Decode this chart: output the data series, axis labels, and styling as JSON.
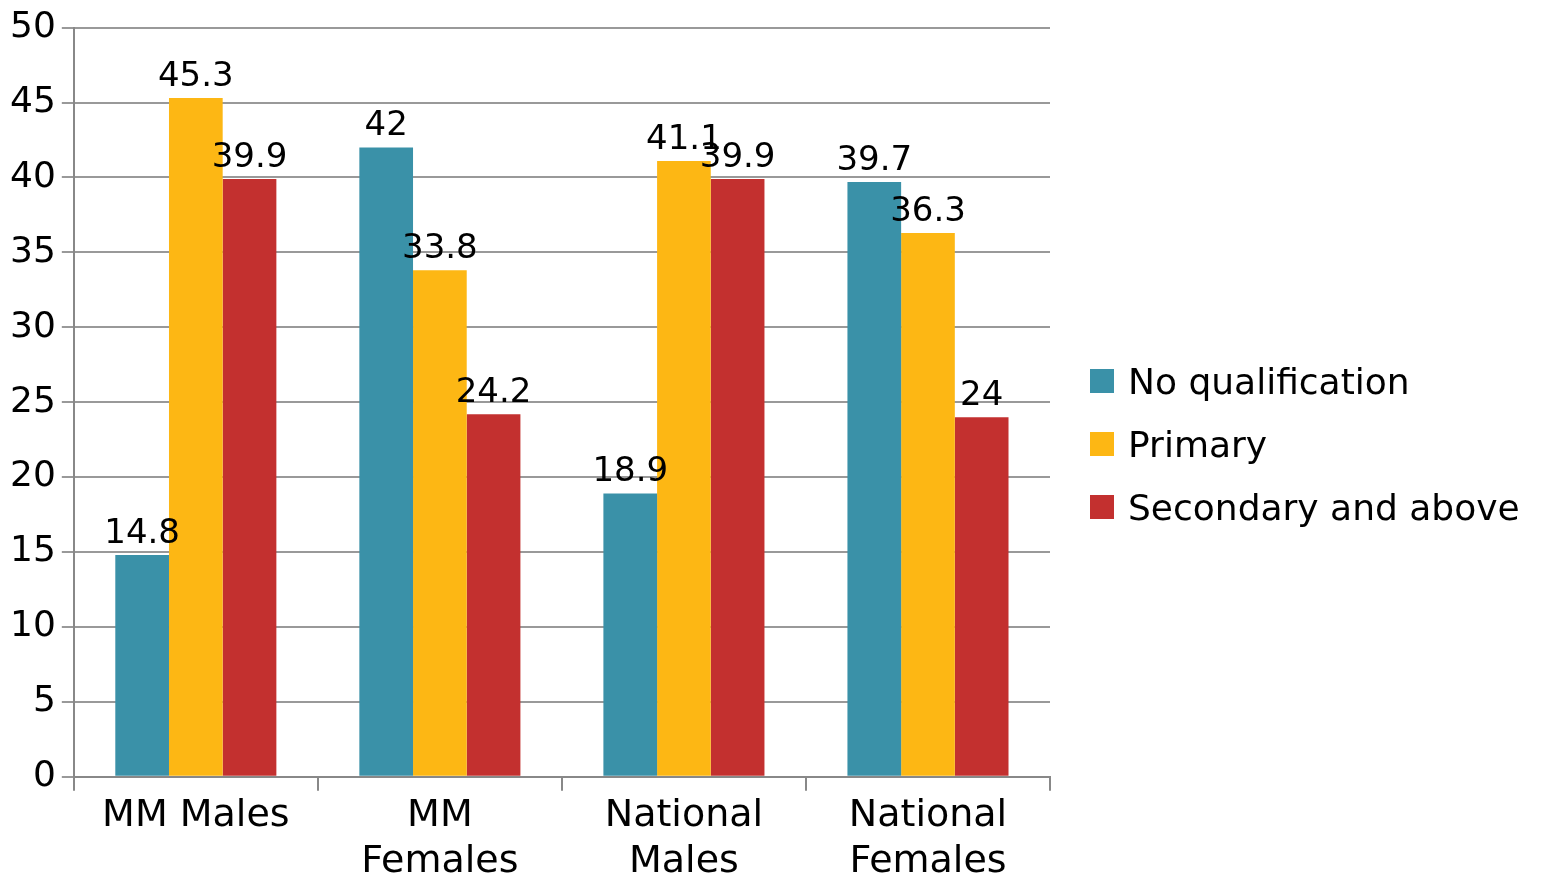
{
  "chart_data": {
    "type": "bar",
    "categories": [
      "MM Males",
      "MM Females",
      "National Males",
      "National Females"
    ],
    "series": [
      {
        "name": "No qualification",
        "color": "#3a91a8",
        "values": [
          14.8,
          42,
          18.9,
          39.7
        ]
      },
      {
        "name": "Primary",
        "color": "#fdb714",
        "values": [
          45.3,
          33.8,
          41.1,
          36.3
        ]
      },
      {
        "name": "Secondary and above",
        "color": "#c3302f",
        "values": [
          39.9,
          24.2,
          39.9,
          24
        ]
      }
    ],
    "ylim": [
      0,
      50
    ],
    "yticks": [
      0,
      5,
      10,
      15,
      20,
      25,
      30,
      35,
      40,
      45,
      50
    ],
    "grid": "y",
    "legend": "right",
    "data_labels": true
  }
}
